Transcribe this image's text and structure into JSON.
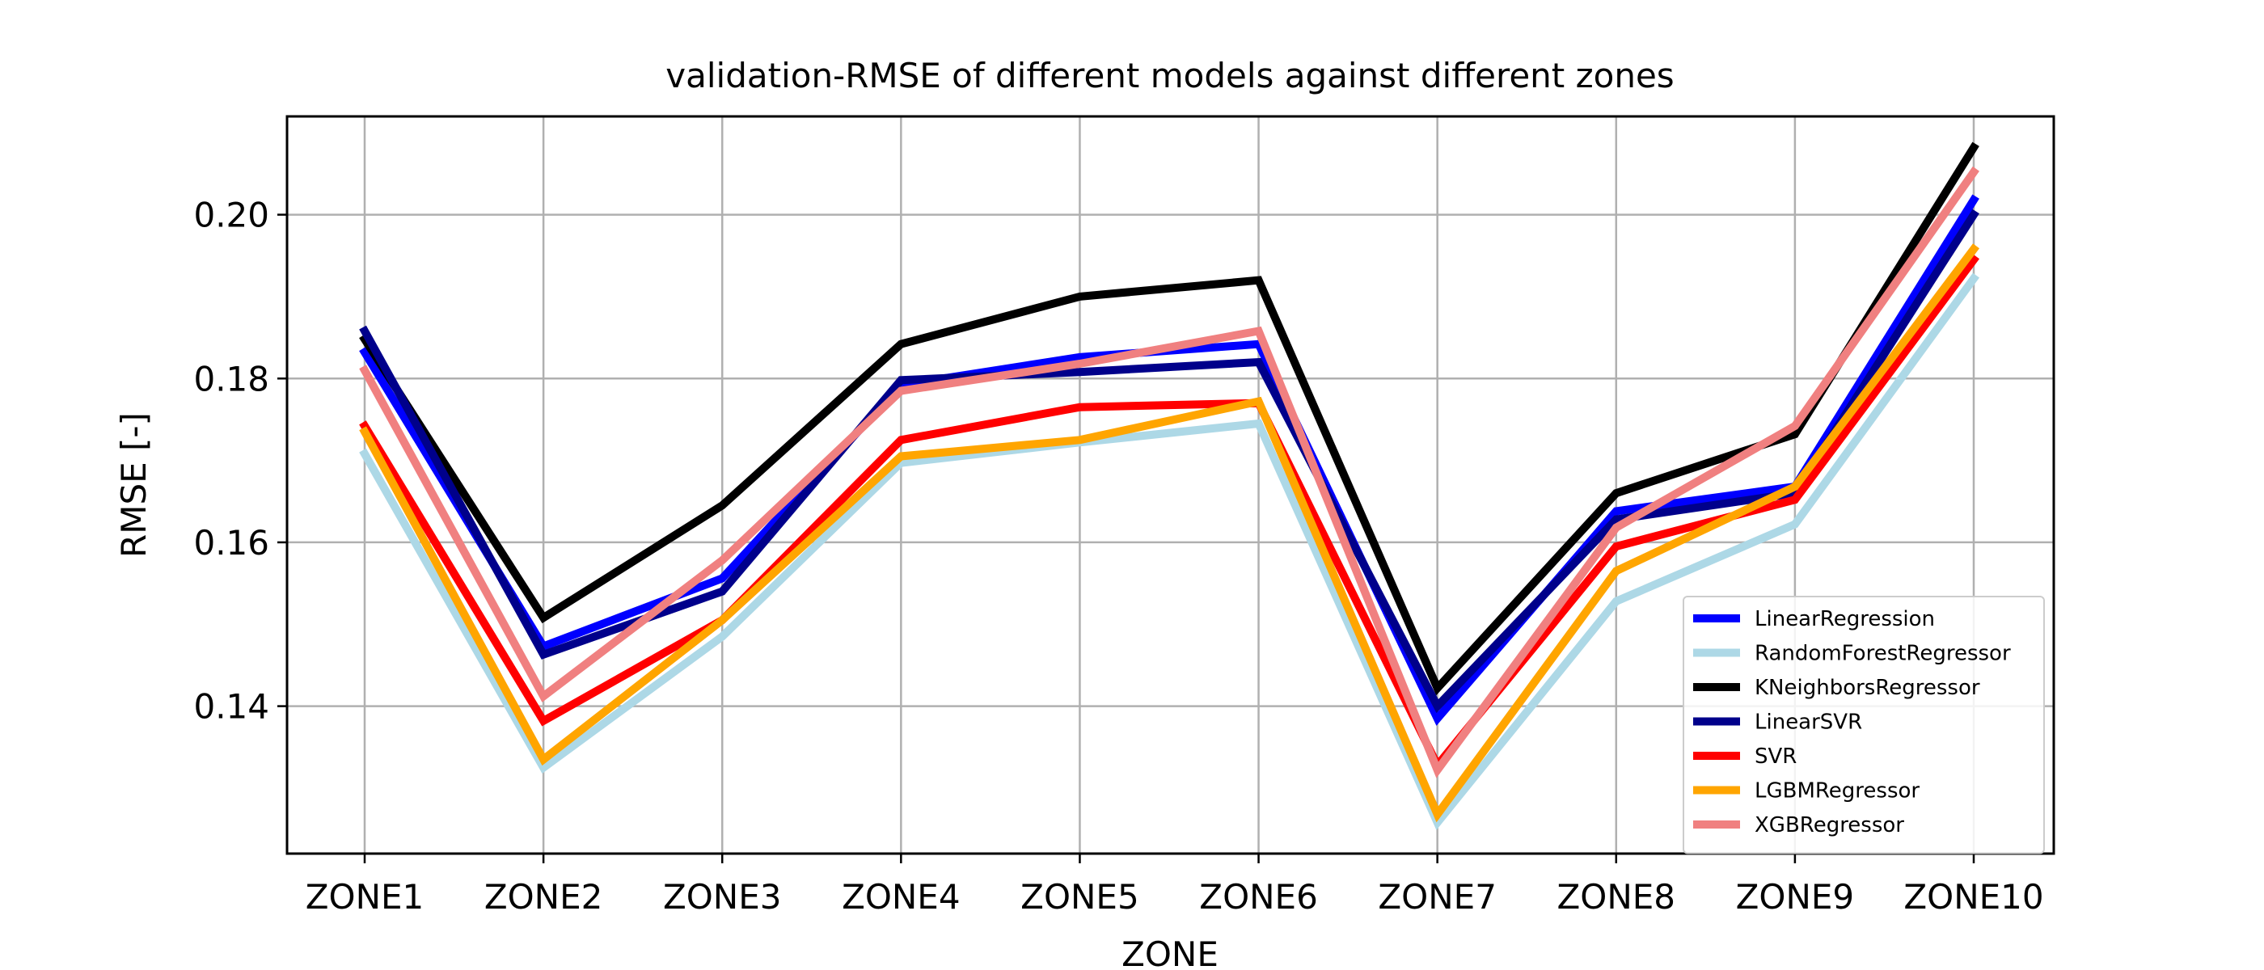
{
  "chart_data": {
    "type": "line",
    "title": "validation-RMSE of different models against different zones",
    "xlabel": "ZONE",
    "ylabel": "RMSE [-]",
    "categories": [
      "ZONE1",
      "ZONE2",
      "ZONE3",
      "ZONE4",
      "ZONE5",
      "ZONE6",
      "ZONE7",
      "ZONE8",
      "ZONE9",
      "ZONE10"
    ],
    "ylim": [
      0.122,
      0.212
    ],
    "yticks": [
      0.14,
      0.16,
      0.18,
      0.2
    ],
    "ytick_labels": [
      "0.14",
      "0.16",
      "0.18",
      "0.20"
    ],
    "grid": true,
    "legend_position": "lower-right",
    "series": [
      {
        "name": "LinearRegression",
        "color": "#0000ff",
        "values": [
          0.1832,
          0.1473,
          0.1556,
          0.1792,
          0.1826,
          0.1842,
          0.1385,
          0.1638,
          0.1668,
          0.2018
        ]
      },
      {
        "name": "RandomForestRegressor",
        "color": "#add8e6",
        "values": [
          0.1708,
          0.1325,
          0.1485,
          0.1697,
          0.1722,
          0.1745,
          0.1258,
          0.1528,
          0.1622,
          0.1922
        ]
      },
      {
        "name": "KNeighborsRegressor",
        "color": "#000000",
        "values": [
          0.1848,
          0.1508,
          0.1645,
          0.1842,
          0.19,
          0.192,
          0.1422,
          0.166,
          0.1732,
          0.2082
        ]
      },
      {
        "name": "LinearSVR",
        "color": "#00008b",
        "values": [
          0.1858,
          0.1463,
          0.154,
          0.1798,
          0.1808,
          0.182,
          0.14,
          0.1628,
          0.166,
          0.2
        ]
      },
      {
        "name": "SVR",
        "color": "#ff0000",
        "values": [
          0.1742,
          0.1382,
          0.1505,
          0.1725,
          0.1765,
          0.177,
          0.1328,
          0.1595,
          0.1652,
          0.1945
        ]
      },
      {
        "name": "LGBMRegressor",
        "color": "#ffa500",
        "values": [
          0.1735,
          0.1335,
          0.1505,
          0.1705,
          0.1725,
          0.1772,
          0.1268,
          0.1565,
          0.1668,
          0.1958
        ]
      },
      {
        "name": "XGBRegressor",
        "color": "#f08080",
        "values": [
          0.181,
          0.1412,
          0.1578,
          0.1785,
          0.1818,
          0.1858,
          0.1322,
          0.1618,
          0.1742,
          0.2052
        ]
      }
    ]
  }
}
